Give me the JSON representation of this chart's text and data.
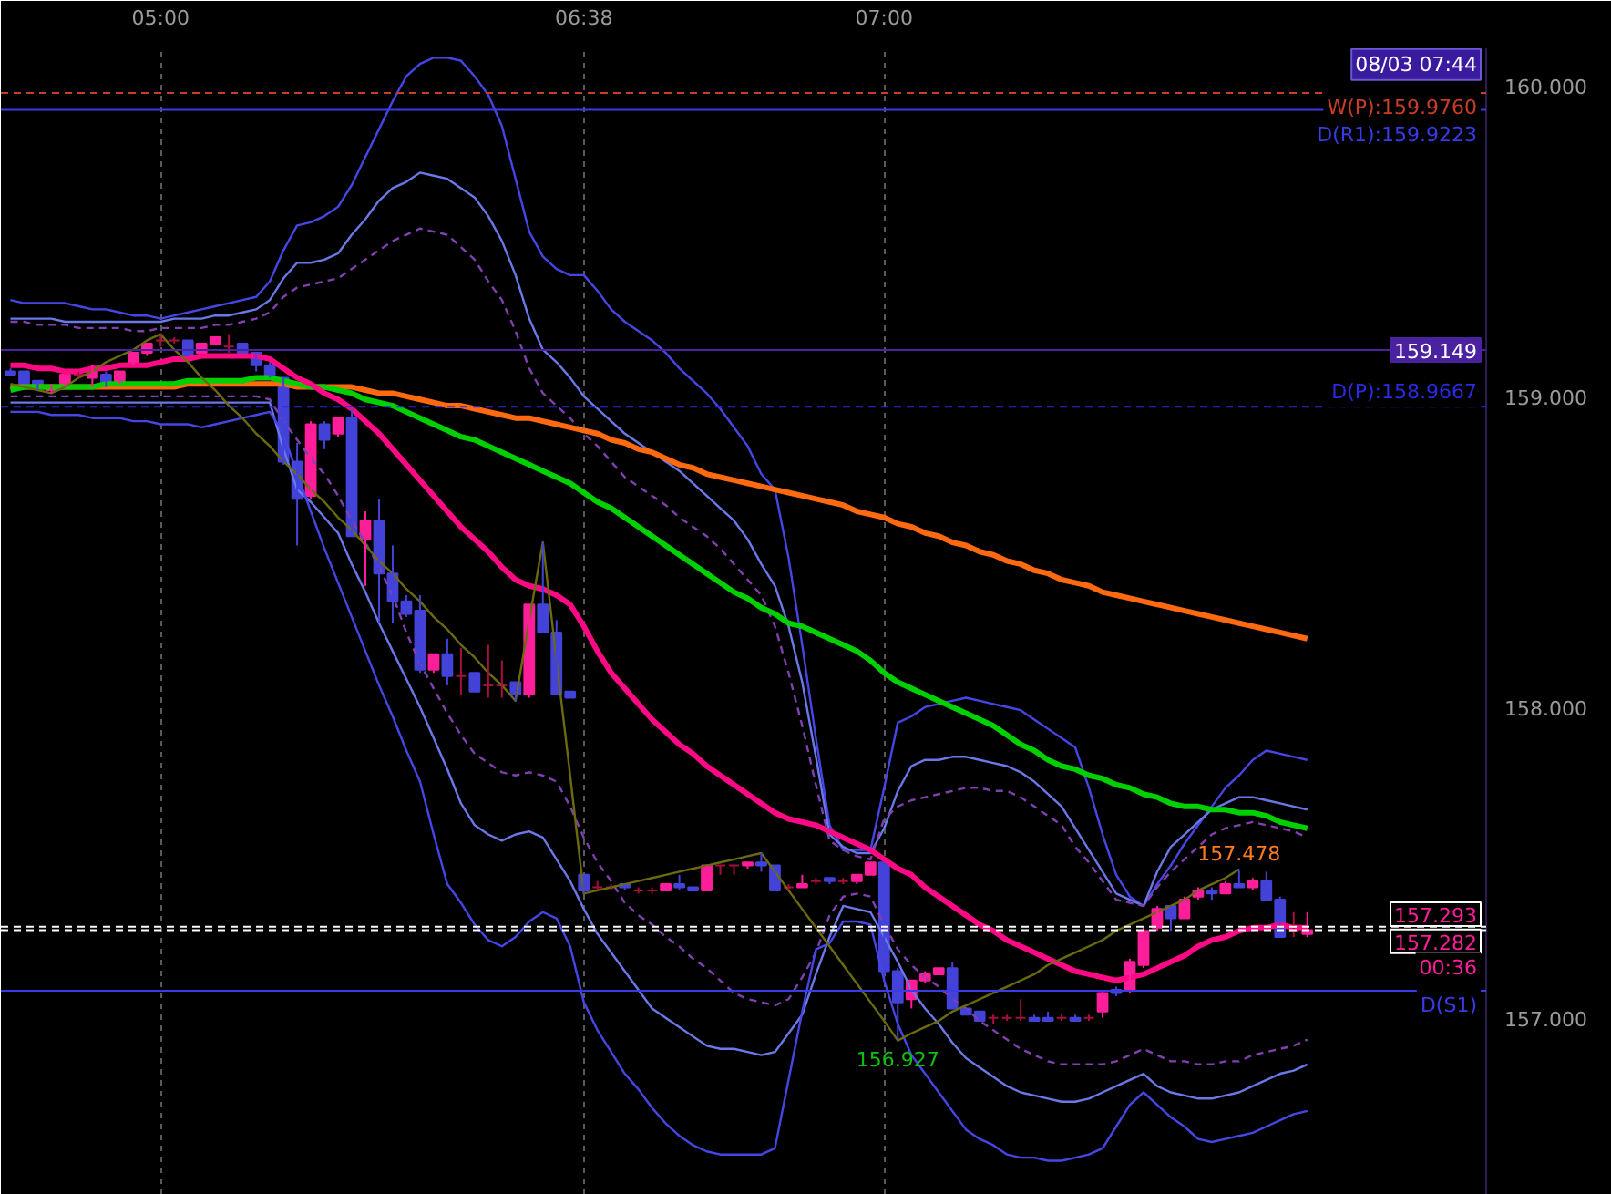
{
  "chart_data": {
    "type": "candlestick",
    "categories": [
      null,
      null,
      null,
      null,
      null,
      null,
      null,
      null,
      null,
      null,
      null,
      "05:00",
      null,
      null,
      null,
      null,
      null,
      null,
      null,
      null,
      null,
      null,
      null,
      null,
      null,
      null,
      null,
      null,
      null,
      null,
      null,
      null,
      null,
      null,
      null,
      null,
      null,
      null,
      null,
      null,
      null,
      null,
      "06:38",
      null,
      null,
      null,
      null,
      null,
      null,
      null,
      null,
      null,
      null,
      null,
      null,
      null,
      null,
      null,
      null,
      null,
      null,
      null,
      null,
      null,
      "07:00",
      null,
      null,
      null,
      null,
      null,
      null,
      null,
      null,
      null,
      null,
      null,
      null,
      null,
      null,
      null,
      null,
      null,
      null,
      null,
      null,
      null,
      null,
      null,
      null,
      null,
      null,
      null,
      null,
      null,
      null,
      null
    ],
    "ohlc": [
      [
        159.08,
        159.09,
        159.07,
        159.07
      ],
      [
        159.08,
        159.08,
        159.04,
        159.04
      ],
      [
        159.05,
        159.05,
        159.02,
        159.03
      ],
      [
        159.02,
        159.04,
        159.01,
        159.03
      ],
      [
        159.03,
        159.07,
        159.03,
        159.07
      ],
      [
        159.07,
        159.08,
        159.06,
        159.07
      ],
      [
        159.06,
        159.1,
        159.03,
        159.08
      ],
      [
        159.07,
        159.08,
        159.03,
        159.03
      ],
      [
        159.04,
        159.08,
        159.04,
        159.08
      ],
      [
        159.1,
        159.14,
        159.1,
        159.14
      ],
      [
        159.14,
        159.17,
        159.13,
        159.17
      ],
      [
        159.18,
        159.2,
        159.16,
        159.18
      ],
      [
        159.18,
        159.19,
        159.17,
        159.18
      ],
      [
        159.18,
        159.18,
        159.13,
        159.13
      ],
      [
        159.14,
        159.17,
        159.14,
        159.17
      ],
      [
        159.17,
        159.19,
        159.17,
        159.19
      ],
      [
        159.16,
        159.2,
        159.14,
        159.16
      ],
      [
        159.17,
        159.17,
        159.14,
        159.14
      ],
      [
        159.14,
        159.14,
        159.08,
        159.1
      ],
      [
        159.1,
        159.11,
        159.06,
        159.06
      ],
      [
        159.06,
        159.06,
        158.78,
        158.79
      ],
      [
        158.79,
        158.85,
        158.52,
        158.67
      ],
      [
        158.68,
        158.92,
        158.67,
        158.91
      ],
      [
        158.91,
        158.92,
        158.83,
        158.86
      ],
      [
        158.88,
        158.93,
        158.87,
        158.93
      ],
      [
        158.93,
        158.96,
        158.55,
        158.55
      ],
      [
        158.54,
        158.63,
        158.39,
        158.6
      ],
      [
        158.6,
        158.67,
        158.27,
        158.43
      ],
      [
        158.43,
        158.52,
        158.27,
        158.34
      ],
      [
        158.34,
        158.36,
        158.29,
        158.3
      ],
      [
        158.31,
        158.36,
        158.11,
        158.12
      ],
      [
        158.12,
        158.17,
        158.11,
        158.17
      ],
      [
        158.17,
        158.22,
        158.07,
        158.1
      ],
      [
        158.1,
        158.19,
        158.04,
        158.1
      ],
      [
        158.11,
        158.11,
        158.05,
        158.05
      ],
      [
        158.07,
        158.2,
        158.03,
        158.07
      ],
      [
        158.07,
        158.15,
        158.03,
        158.07
      ],
      [
        158.08,
        158.08,
        158.02,
        158.04
      ],
      [
        158.04,
        158.33,
        158.03,
        158.33
      ],
      [
        158.33,
        158.53,
        158.24,
        158.24
      ],
      [
        158.24,
        158.28,
        158.04,
        158.04
      ],
      [
        158.05,
        158.05,
        158.03,
        158.03
      ],
      [
        157.46,
        157.46,
        157.4,
        157.41
      ],
      [
        157.42,
        157.44,
        157.41,
        157.42
      ],
      [
        157.42,
        157.43,
        157.41,
        157.42
      ],
      [
        157.43,
        157.43,
        157.41,
        157.42
      ],
      [
        157.41,
        157.42,
        157.4,
        157.41
      ],
      [
        157.41,
        157.42,
        157.4,
        157.41
      ],
      [
        157.41,
        157.43,
        157.41,
        157.43
      ],
      [
        157.43,
        157.46,
        157.41,
        157.42
      ],
      [
        157.42,
        157.42,
        157.41,
        157.41
      ],
      [
        157.41,
        157.49,
        157.41,
        157.49
      ],
      [
        157.49,
        157.49,
        157.46,
        157.49
      ],
      [
        157.49,
        157.49,
        157.46,
        157.49
      ],
      [
        157.49,
        157.5,
        157.48,
        157.5
      ],
      [
        157.5,
        157.53,
        157.47,
        157.49
      ],
      [
        157.49,
        157.49,
        157.41,
        157.41
      ],
      [
        157.42,
        157.43,
        157.41,
        157.42
      ],
      [
        157.42,
        157.46,
        157.42,
        157.43
      ],
      [
        157.44,
        157.45,
        157.43,
        157.44
      ],
      [
        157.45,
        157.45,
        157.43,
        157.44
      ],
      [
        157.44,
        157.45,
        157.43,
        157.44
      ],
      [
        157.44,
        157.46,
        157.43,
        157.46
      ],
      [
        157.46,
        157.5,
        157.46,
        157.5
      ],
      [
        157.5,
        157.5,
        157.12,
        157.15
      ],
      [
        157.15,
        157.16,
        156.927,
        157.05
      ],
      [
        157.06,
        157.12,
        157.03,
        157.12
      ],
      [
        157.12,
        157.15,
        157.11,
        157.14
      ],
      [
        157.14,
        157.16,
        157.14,
        157.16
      ],
      [
        157.16,
        157.18,
        157.03,
        157.03
      ],
      [
        157.03,
        157.03,
        157.01,
        157.01
      ],
      [
        157.02,
        157.02,
        156.99,
        156.99
      ],
      [
        157.0,
        157.01,
        156.98,
        157.0
      ],
      [
        157.0,
        157.01,
        156.99,
        157.0
      ],
      [
        157.0,
        157.06,
        156.99,
        157.0
      ],
      [
        157.0,
        157.01,
        156.99,
        156.99
      ],
      [
        157.0,
        157.02,
        156.99,
        156.99
      ],
      [
        157.0,
        157.01,
        156.99,
        157.0
      ],
      [
        157.0,
        157.01,
        156.99,
        156.99
      ],
      [
        157.0,
        157.01,
        156.99,
        157.0
      ],
      [
        157.02,
        157.09,
        157.0,
        157.08
      ],
      [
        157.09,
        157.1,
        157.07,
        157.08
      ],
      [
        157.09,
        157.19,
        157.08,
        157.18
      ],
      [
        157.17,
        157.29,
        157.16,
        157.28
      ],
      [
        157.29,
        157.36,
        157.28,
        157.35
      ],
      [
        157.36,
        157.36,
        157.28,
        157.32
      ],
      [
        157.32,
        157.39,
        157.32,
        157.38
      ],
      [
        157.39,
        157.42,
        157.38,
        157.41
      ],
      [
        157.41,
        157.42,
        157.38,
        157.4
      ],
      [
        157.4,
        157.44,
        157.4,
        157.43
      ],
      [
        157.43,
        157.478,
        157.42,
        157.42
      ],
      [
        157.42,
        157.45,
        157.41,
        157.44
      ],
      [
        157.44,
        157.47,
        157.38,
        157.38
      ],
      [
        157.38,
        157.39,
        157.26,
        157.26
      ],
      [
        157.28,
        157.34,
        157.26,
        157.28
      ],
      [
        157.27,
        157.34,
        157.26,
        157.282
      ]
    ],
    "colors": [
      "#4343d9",
      "#4343d9",
      "#4343d9",
      "#ff1e9a",
      "#ff1e9a",
      "#a8103c",
      "#ff1e9a",
      "#4343d9",
      "#ff1e9a",
      "#ff1e9a",
      "#ff1e9a",
      "#a8103c",
      "#a8103c",
      "#4343d9",
      "#ff1e9a",
      "#ff1e9a",
      "#a8103c",
      "#4343d9",
      "#4343d9",
      "#4343d9",
      "#4343d9",
      "#4343d9",
      "#ff1e9a",
      "#4343d9",
      "#ff1e9a",
      "#4343d9",
      "#ff1e9a",
      "#4343d9",
      "#4343d9",
      "#4343d9",
      "#4343d9",
      "#ff1e9a",
      "#4343d9",
      "#a8103c",
      "#4343d9",
      "#a8103c",
      "#a8103c",
      "#4343d9",
      "#ff1e9a",
      "#4343d9",
      "#4343d9",
      "#4343d9",
      "#4343d9",
      "#a8103c",
      "#a8103c",
      "#4343d9",
      "#a8103c",
      "#a8103c",
      "#ff1e9a",
      "#4343d9",
      "#4343d9",
      "#ff1e9a",
      "#a8103c",
      "#a8103c",
      "#ff1e9a",
      "#4343d9",
      "#4343d9",
      "#a8103c",
      "#ff1e9a",
      "#a8103c",
      "#4343d9",
      "#a8103c",
      "#ff1e9a",
      "#ff1e9a",
      "#4343d9",
      "#4343d9",
      "#ff1e9a",
      "#ff1e9a",
      "#ff1e9a",
      "#4343d9",
      "#4343d9",
      "#4343d9",
      "#a8103c",
      "#a8103c",
      "#a8103c",
      "#4343d9",
      "#4343d9",
      "#a8103c",
      "#4343d9",
      "#a8103c",
      "#ff1e9a",
      "#4343d9",
      "#ff1e9a",
      "#ff1e9a",
      "#ff1e9a",
      "#4343d9",
      "#ff1e9a",
      "#ff1e9a",
      "#4343d9",
      "#ff1e9a",
      "#4343d9",
      "#ff1e9a",
      "#4343d9",
      "#4343d9",
      "#a8103c",
      "#ff1e9a"
    ],
    "series": [
      {
        "type": "line",
        "color": "#4646e6",
        "values": [
          159.31,
          159.3,
          159.3,
          159.3,
          159.3,
          159.29,
          159.28,
          159.28,
          159.27,
          159.26,
          159.26,
          159.25,
          159.26,
          159.27,
          159.28,
          159.29,
          159.3,
          159.31,
          159.32,
          159.37,
          159.47,
          159.55,
          159.56,
          159.58,
          159.61,
          159.68,
          159.77,
          159.86,
          159.95,
          160.03,
          160.07,
          160.09,
          160.09,
          160.08,
          160.03,
          159.97,
          159.87,
          159.7,
          159.53,
          159.45,
          159.41,
          159.39,
          159.39,
          159.34,
          159.28,
          159.24,
          159.21,
          159.18,
          159.14,
          159.09,
          159.05,
          159.01,
          158.96,
          158.9,
          158.84,
          158.75,
          158.7,
          158.48,
          158.2,
          157.9,
          157.62,
          157.54,
          157.54,
          157.54,
          157.74,
          157.95,
          157.97,
          158.0,
          158.01,
          158.02,
          158.03,
          158.02,
          158.01,
          158.0,
          157.99,
          157.96,
          157.93,
          157.9,
          157.87,
          157.74,
          157.59,
          157.46,
          157.39,
          157.36,
          157.43,
          157.49,
          157.56,
          157.62,
          157.68,
          157.74,
          157.78,
          157.83,
          157.86,
          157.85,
          157.84,
          157.83
        ]
      },
      {
        "type": "line",
        "color": "#6a78e8",
        "values": [
          159.25,
          159.25,
          159.25,
          159.25,
          159.24,
          159.24,
          159.24,
          159.24,
          159.24,
          159.24,
          159.24,
          159.24,
          159.25,
          159.25,
          159.25,
          159.26,
          159.26,
          159.27,
          159.28,
          159.31,
          159.38,
          159.43,
          159.43,
          159.44,
          159.46,
          159.52,
          159.57,
          159.63,
          159.67,
          159.69,
          159.72,
          159.71,
          159.7,
          159.67,
          159.64,
          159.58,
          159.5,
          159.39,
          159.25,
          159.15,
          159.11,
          159.06,
          159.0,
          158.96,
          158.92,
          158.88,
          158.85,
          158.82,
          158.79,
          158.76,
          158.72,
          158.68,
          158.64,
          158.6,
          158.54,
          158.46,
          158.39,
          158.26,
          158.08,
          157.84,
          157.59,
          157.55,
          157.53,
          157.53,
          157.61,
          157.73,
          157.81,
          157.83,
          157.83,
          157.84,
          157.84,
          157.83,
          157.82,
          157.81,
          157.79,
          157.76,
          157.72,
          157.68,
          157.61,
          157.54,
          157.47,
          157.4,
          157.38,
          157.36,
          157.47,
          157.55,
          157.59,
          157.63,
          157.67,
          157.69,
          157.71,
          157.71,
          157.7,
          157.69,
          157.68,
          157.67
        ]
      },
      {
        "type": "line",
        "color": "#8040b0",
        "line_style": "dashed",
        "values": [
          159.24,
          159.24,
          159.23,
          159.23,
          159.23,
          159.22,
          159.22,
          159.22,
          159.22,
          159.21,
          159.21,
          159.22,
          159.22,
          159.22,
          159.22,
          159.23,
          159.23,
          159.24,
          159.25,
          159.27,
          159.32,
          159.35,
          159.36,
          159.37,
          159.38,
          159.41,
          159.44,
          159.47,
          159.5,
          159.52,
          159.54,
          159.53,
          159.52,
          159.48,
          159.44,
          159.37,
          159.31,
          159.21,
          159.09,
          159.01,
          158.97,
          158.93,
          158.88,
          158.84,
          158.79,
          158.74,
          158.71,
          158.68,
          158.65,
          158.61,
          158.58,
          158.55,
          158.51,
          158.46,
          158.41,
          158.36,
          158.26,
          158.11,
          157.94,
          157.75,
          157.57,
          157.54,
          157.52,
          157.51,
          157.64,
          157.68,
          157.7,
          157.71,
          157.72,
          157.73,
          157.74,
          157.74,
          157.73,
          157.73,
          157.71,
          157.68,
          157.65,
          157.62,
          157.55,
          157.5,
          157.44,
          157.38,
          157.37,
          157.36,
          157.42,
          157.47,
          157.51,
          157.55,
          157.59,
          157.61,
          157.62,
          157.63,
          157.62,
          157.61,
          157.6,
          157.58
        ]
      },
      {
        "type": "line",
        "color": "#8040b0",
        "line_style": "dashed",
        "values": [
          159.0,
          159.0,
          159.0,
          159.0,
          159.0,
          159.0,
          159.0,
          159.0,
          159.0,
          159.0,
          159.0,
          159.0,
          159.0,
          159.0,
          159.0,
          159.0,
          159.0,
          159.0,
          159.0,
          158.99,
          158.92,
          158.86,
          158.8,
          158.75,
          158.68,
          158.6,
          158.53,
          158.45,
          158.36,
          158.24,
          158.14,
          158.06,
          157.98,
          157.91,
          157.85,
          157.82,
          157.79,
          157.78,
          157.79,
          157.78,
          157.76,
          157.68,
          157.58,
          157.5,
          157.44,
          157.37,
          157.33,
          157.3,
          157.26,
          157.23,
          157.19,
          157.16,
          157.12,
          157.08,
          157.06,
          157.05,
          157.04,
          157.06,
          157.13,
          157.21,
          157.33,
          157.39,
          157.4,
          157.39,
          157.3,
          157.22,
          157.17,
          157.13,
          157.1,
          157.06,
          157.03,
          156.99,
          156.96,
          156.93,
          156.9,
          156.88,
          156.86,
          156.85,
          156.85,
          156.85,
          156.85,
          156.86,
          156.88,
          156.9,
          156.88,
          156.86,
          156.86,
          156.85,
          156.85,
          156.86,
          156.86,
          156.88,
          156.89,
          156.9,
          156.91,
          156.93
        ]
      },
      {
        "type": "line",
        "color": "#6a78e8",
        "values": [
          158.98,
          158.98,
          158.98,
          158.98,
          158.98,
          158.98,
          158.98,
          158.98,
          158.98,
          158.98,
          158.98,
          158.98,
          158.98,
          158.98,
          158.98,
          158.98,
          158.98,
          158.98,
          158.98,
          158.98,
          158.83,
          158.7,
          158.66,
          158.61,
          158.56,
          158.46,
          158.37,
          158.27,
          158.18,
          158.09,
          158.0,
          157.9,
          157.8,
          157.69,
          157.62,
          157.59,
          157.57,
          157.59,
          157.6,
          157.58,
          157.51,
          157.44,
          157.35,
          157.27,
          157.21,
          157.15,
          157.09,
          157.03,
          157.0,
          156.97,
          156.94,
          156.91,
          156.9,
          156.9,
          156.89,
          156.88,
          156.89,
          156.95,
          157.01,
          157.14,
          157.26,
          157.36,
          157.35,
          157.34,
          157.26,
          157.18,
          157.09,
          157.03,
          156.98,
          156.92,
          156.87,
          156.84,
          156.81,
          156.78,
          156.76,
          156.75,
          156.74,
          156.73,
          156.73,
          156.74,
          156.76,
          156.78,
          156.8,
          156.82,
          156.78,
          156.76,
          156.75,
          156.74,
          156.74,
          156.75,
          156.76,
          156.78,
          156.8,
          156.82,
          156.83,
          156.85
        ]
      },
      {
        "type": "line",
        "color": "#4646e6",
        "values": [
          158.95,
          158.95,
          158.95,
          158.94,
          158.94,
          158.94,
          158.93,
          158.93,
          158.93,
          158.92,
          158.92,
          158.91,
          158.91,
          158.91,
          158.9,
          158.91,
          158.92,
          158.93,
          158.94,
          158.95,
          158.88,
          158.75,
          158.63,
          158.51,
          158.4,
          158.29,
          158.18,
          158.07,
          157.97,
          157.86,
          157.76,
          157.59,
          157.43,
          157.37,
          157.3,
          157.25,
          157.23,
          157.26,
          157.31,
          157.34,
          157.32,
          157.23,
          157.05,
          156.96,
          156.89,
          156.82,
          156.77,
          156.71,
          156.66,
          156.62,
          156.59,
          156.57,
          156.56,
          156.56,
          156.56,
          156.56,
          156.58,
          156.8,
          157.02,
          157.22,
          157.24,
          157.31,
          157.31,
          157.3,
          157.12,
          156.98,
          156.88,
          156.82,
          156.76,
          156.7,
          156.64,
          156.61,
          156.59,
          156.56,
          156.55,
          156.55,
          156.54,
          156.54,
          156.55,
          156.56,
          156.58,
          156.65,
          156.72,
          156.76,
          156.72,
          156.68,
          156.65,
          156.61,
          156.6,
          156.61,
          156.62,
          156.63,
          156.65,
          156.67,
          156.69,
          156.7
        ]
      },
      {
        "type": "line",
        "color": "#ff6a10",
        "values": [
          159.03,
          159.03,
          159.03,
          159.03,
          159.03,
          159.03,
          159.03,
          159.03,
          159.03,
          159.03,
          159.03,
          159.03,
          159.03,
          159.04,
          159.04,
          159.04,
          159.04,
          159.04,
          159.04,
          159.04,
          159.04,
          159.03,
          159.03,
          159.03,
          159.03,
          159.03,
          159.02,
          159.01,
          159.01,
          159.0,
          158.99,
          158.98,
          158.97,
          158.97,
          158.96,
          158.95,
          158.94,
          158.93,
          158.93,
          158.92,
          158.91,
          158.9,
          158.89,
          158.88,
          158.86,
          158.85,
          158.83,
          158.82,
          158.8,
          158.78,
          158.77,
          158.75,
          158.74,
          158.73,
          158.72,
          158.71,
          158.7,
          158.69,
          158.68,
          158.67,
          158.66,
          158.65,
          158.63,
          158.62,
          158.61,
          158.59,
          158.58,
          158.56,
          158.55,
          158.53,
          158.52,
          158.5,
          158.49,
          158.47,
          158.46,
          158.44,
          158.43,
          158.41,
          158.4,
          158.39,
          158.37,
          158.36,
          158.35,
          158.34,
          158.33,
          158.32,
          158.31,
          158.3,
          158.29,
          158.28,
          158.27,
          158.26,
          158.25,
          158.24,
          158.23,
          158.22
        ]
      },
      {
        "type": "line",
        "color": "#00d000",
        "values": [
          159.02,
          159.03,
          159.03,
          159.03,
          159.03,
          159.03,
          159.03,
          159.04,
          159.04,
          159.04,
          159.04,
          159.04,
          159.04,
          159.05,
          159.05,
          159.05,
          159.05,
          159.05,
          159.06,
          159.06,
          159.05,
          159.04,
          159.03,
          159.03,
          159.02,
          159.01,
          158.99,
          158.98,
          158.97,
          158.95,
          158.93,
          158.91,
          158.89,
          158.87,
          158.86,
          158.84,
          158.82,
          158.8,
          158.78,
          158.76,
          158.74,
          158.72,
          158.69,
          158.66,
          158.64,
          158.61,
          158.58,
          158.55,
          158.52,
          158.49,
          158.46,
          158.43,
          158.4,
          158.37,
          158.35,
          158.32,
          158.3,
          158.27,
          158.26,
          158.24,
          158.22,
          158.2,
          158.18,
          158.15,
          158.11,
          158.08,
          158.06,
          158.04,
          158.02,
          158.0,
          157.98,
          157.96,
          157.94,
          157.91,
          157.88,
          157.86,
          157.83,
          157.81,
          157.8,
          157.78,
          157.77,
          157.75,
          157.74,
          157.72,
          157.71,
          157.69,
          157.68,
          157.68,
          157.67,
          157.67,
          157.66,
          157.66,
          157.65,
          157.63,
          157.62,
          157.61
        ]
      },
      {
        "type": "line",
        "color": "#ff0a84",
        "values": [
          159.1,
          159.1,
          159.09,
          159.09,
          159.08,
          159.08,
          159.09,
          159.09,
          159.1,
          159.1,
          159.1,
          159.11,
          159.12,
          159.12,
          159.13,
          159.13,
          159.13,
          159.13,
          159.13,
          159.12,
          159.09,
          159.06,
          159.04,
          159.01,
          158.99,
          158.96,
          158.92,
          158.88,
          158.83,
          158.78,
          158.73,
          158.68,
          158.63,
          158.58,
          158.54,
          158.5,
          158.45,
          158.41,
          158.39,
          158.38,
          158.36,
          158.33,
          158.26,
          158.18,
          158.11,
          158.06,
          158.01,
          157.96,
          157.92,
          157.88,
          157.85,
          157.81,
          157.78,
          157.75,
          157.72,
          157.69,
          157.66,
          157.64,
          157.63,
          157.62,
          157.6,
          157.58,
          157.56,
          157.54,
          157.51,
          157.48,
          157.46,
          157.42,
          157.39,
          157.36,
          157.33,
          157.3,
          157.28,
          157.25,
          157.23,
          157.21,
          157.19,
          157.17,
          157.15,
          157.14,
          157.13,
          157.12,
          157.13,
          157.14,
          157.16,
          157.18,
          157.2,
          157.23,
          157.25,
          157.26,
          157.28,
          157.29,
          157.29,
          157.3,
          157.29,
          157.29
        ]
      },
      {
        "type": "line",
        "color": "#6b6a10",
        "values": [
          159.04,
          159.03,
          159.02,
          159.01,
          159.03,
          159.06,
          159.08,
          159.11,
          159.13,
          159.15,
          159.18,
          159.2,
          159.15,
          159.11,
          159.06,
          159.02,
          158.97,
          158.93,
          158.88,
          158.84,
          158.79,
          158.75,
          158.7,
          158.66,
          158.61,
          158.57,
          158.52,
          158.47,
          158.43,
          158.38,
          158.34,
          158.29,
          158.25,
          158.2,
          158.16,
          158.11,
          158.07,
          158.02,
          158.28,
          158.53,
          158.15,
          157.78,
          157.4,
          157.41,
          157.42,
          157.43,
          157.44,
          157.45,
          157.46,
          157.47,
          157.48,
          157.49,
          157.5,
          157.51,
          157.52,
          157.53,
          157.47,
          157.41,
          157.35,
          157.29,
          157.23,
          157.17,
          157.11,
          157.05,
          156.99,
          156.927,
          156.95,
          156.97,
          156.99,
          157.02,
          157.04,
          157.06,
          157.08,
          157.1,
          157.12,
          157.14,
          157.17,
          157.19,
          157.21,
          157.23,
          157.25,
          157.28,
          157.3,
          157.32,
          157.34,
          157.36,
          157.38,
          157.41,
          157.43,
          157.45,
          157.478,
          null,
          null,
          null,
          null,
          null
        ]
      }
    ],
    "ylim": [
      156.43,
      160.12
    ],
    "yticks": [
      {
        "value": 157,
        "label": "157.000"
      },
      {
        "value": 158,
        "label": "158.000"
      },
      {
        "value": 159,
        "label": "159.000"
      },
      {
        "value": 160,
        "label": "160.000"
      }
    ],
    "grid": "x",
    "ref_lines": [
      {
        "axis": "y",
        "value": 159.976,
        "label": "W(P):159.9760",
        "color": "#c83c28",
        "line_style": "dashed"
      },
      {
        "axis": "y",
        "value": 159.9223,
        "label": "D(R1):159.9223",
        "color": "#3a3ae6",
        "line_style": "solid"
      },
      {
        "axis": "y",
        "value": 159.149,
        "label": "159.149",
        "color": "#4a22a0",
        "line_style": "solid"
      },
      {
        "axis": "y",
        "value": 158.9667,
        "label": "D(P):158.9667",
        "color": "#2a2ae0",
        "line_style": "dashed"
      },
      {
        "axis": "y",
        "value": 157.293,
        "label": "157.293",
        "color": "#ffffff",
        "line_style": "dashed"
      },
      {
        "axis": "y",
        "value": 157.282,
        "label": "157.282",
        "color": "#ffffff",
        "line_style": "dashed"
      },
      {
        "axis": "y",
        "value": 157.087,
        "label": "D(S1)",
        "color": "#3a3ae6",
        "line_style": "solid"
      }
    ],
    "annotations": [
      "08/03 07:44",
      {
        "text": "00:36",
        "y": 157.282
      },
      {
        "text": "156.927",
        "y": 156.927
      },
      {
        "text": "157.478",
        "y": 157.478
      }
    ]
  }
}
